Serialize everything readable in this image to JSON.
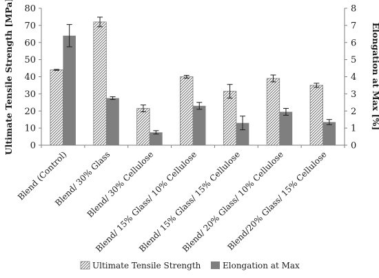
{
  "chart_data": {
    "type": "bar",
    "categories": [
      "Blend (Control)",
      "Blend/ 30% Glass",
      "Blend/ 30% Cellulose",
      "Blend/ 15% Glass/ 10% Cellulose",
      "Blend/ 15% Glass/ 15% Cellulose",
      "Blend/ 20% Glass/ 10% Cellulose",
      "Blend/20% Glass/ 15% Cellulose"
    ],
    "series": [
      {
        "name": "Ultimate Tensile Strength",
        "axis": "left",
        "pattern": "diagonal-hatch",
        "color": "#7a7a7a",
        "values": [
          44,
          72,
          21.5,
          40,
          31.5,
          39,
          35
        ],
        "errors": [
          0.3,
          2.8,
          2,
          0.8,
          4,
          2,
          1.2
        ]
      },
      {
        "name": "Elongation at Max",
        "axis": "right",
        "pattern": "solid",
        "color": "#7f7f7f",
        "values": [
          6.4,
          2.75,
          0.75,
          2.3,
          1.3,
          1.95,
          1.35
        ],
        "errors": [
          0.65,
          0.08,
          0.1,
          0.2,
          0.4,
          0.2,
          0.15
        ]
      }
    ],
    "ylabel": "Ultimate Tensile Strength [MPa]",
    "y2label": "Elongation at Max [%]",
    "ylim": [
      0,
      80
    ],
    "y2lim": [
      0,
      8
    ],
    "yticks": [
      0,
      10,
      20,
      30,
      40,
      50,
      60,
      70,
      80
    ],
    "y2ticks": [
      0,
      1,
      2,
      3,
      4,
      5,
      6,
      7,
      8
    ],
    "grid": false,
    "legend_position": "bottom"
  }
}
